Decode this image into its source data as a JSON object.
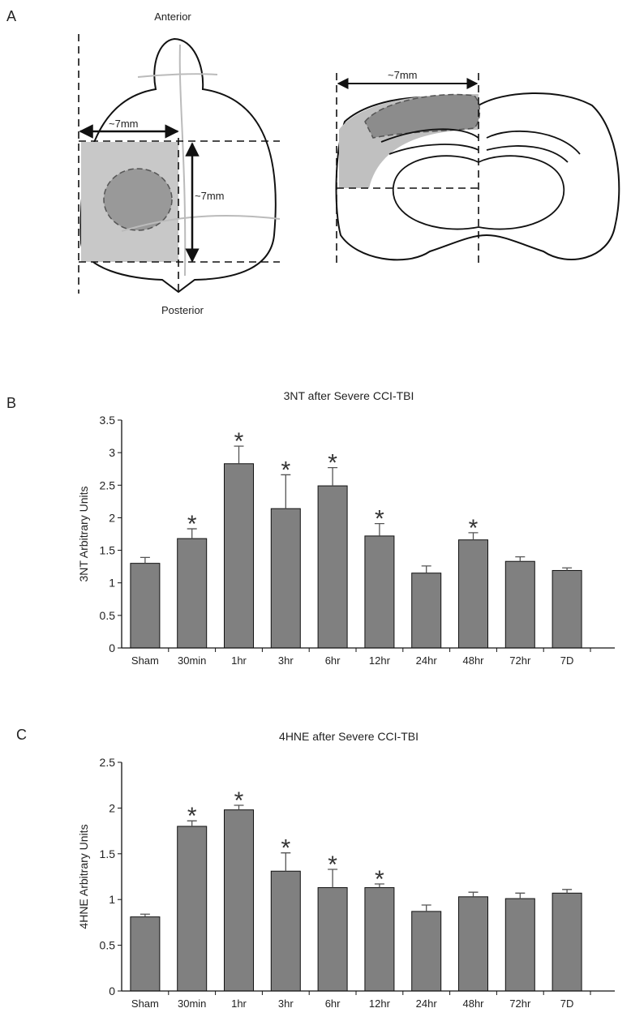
{
  "panel_labels": [
    "A",
    "B",
    "C"
  ],
  "diagram": {
    "anterior": "Anterior",
    "posterior": "Posterior",
    "left_width_label": "~7mm",
    "left_height_label": "~7mm",
    "right_width_label": "~7mm"
  },
  "chart_data": [
    {
      "type": "bar",
      "title": "3NT after Severe CCI-TBI",
      "ylabel": "3NT Arbitrary Units",
      "categories": [
        "Sham",
        "30min",
        "1hr",
        "3hr",
        "6hr",
        "12hr",
        "24hr",
        "48hr",
        "72hr",
        "7D"
      ],
      "values": [
        1.3,
        1.68,
        2.83,
        2.14,
        2.49,
        1.72,
        1.15,
        1.66,
        1.33,
        1.19
      ],
      "errors": [
        0.09,
        0.15,
        0.27,
        0.52,
        0.28,
        0.19,
        0.11,
        0.11,
        0.07,
        0.04
      ],
      "significance": [
        null,
        "*",
        "*",
        "*",
        "*",
        "*",
        null,
        "*",
        null,
        null
      ],
      "color": "#808080",
      "ylim": [
        0,
        3.5
      ],
      "yticks": [
        0,
        0.5,
        1,
        1.5,
        2,
        2.5,
        3,
        3.5
      ]
    },
    {
      "type": "bar",
      "title": "4HNE after Severe CCI-TBI",
      "ylabel": "4HNE Arbitrary Units",
      "categories": [
        "Sham",
        "30min",
        "1hr",
        "3hr",
        "6hr",
        "12hr",
        "24hr",
        "48hr",
        "72hr",
        "7D"
      ],
      "values": [
        0.81,
        1.8,
        1.98,
        1.31,
        1.13,
        1.13,
        0.87,
        1.03,
        1.01,
        1.07
      ],
      "errors": [
        0.03,
        0.06,
        0.05,
        0.2,
        0.2,
        0.04,
        0.07,
        0.05,
        0.06,
        0.04
      ],
      "significance": [
        null,
        "*",
        "*",
        "*",
        "*",
        "*",
        null,
        null,
        null,
        null
      ],
      "color": "#808080",
      "ylim": [
        0,
        2.5
      ],
      "yticks": [
        0,
        0.5,
        1,
        1.5,
        2,
        2.5
      ]
    }
  ]
}
